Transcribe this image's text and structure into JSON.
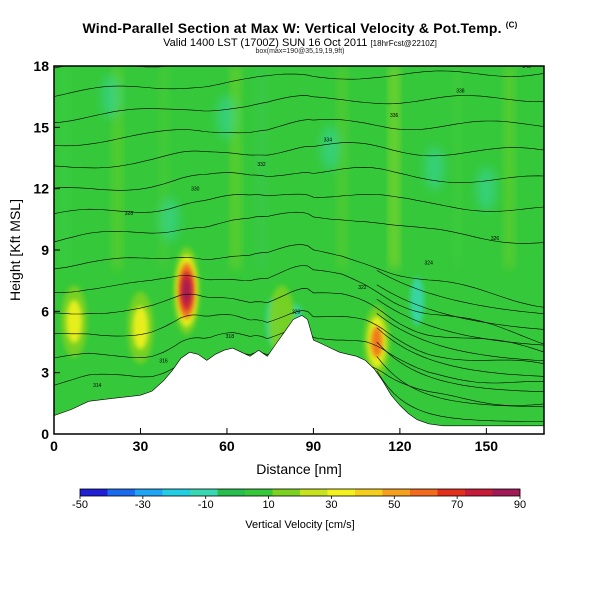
{
  "header": {
    "title": "Wind-Parallel Section at Max W: Vertical Velocity & Pot.Temp.",
    "title_mark": "(C)",
    "valid": "Valid 1400 LST (1700Z) SUN 16 Oct 2011",
    "valid_suffix": "[18hrFcst@2210Z]",
    "subline": "box(max=190@35,19,19,9ft)"
  },
  "chart_data": {
    "type": "heatmap",
    "xlabel": "Distance [nm]",
    "ylabel": "Height [Kft MSL]",
    "xlim": [
      0,
      170
    ],
    "ylim": [
      0,
      18
    ],
    "xticks": [
      0,
      30,
      60,
      90,
      120,
      150
    ],
    "yticks": [
      0,
      3,
      6,
      9,
      12,
      15,
      18
    ],
    "xtick_labels": [
      "0",
      "30",
      "60",
      "90",
      "120",
      "150"
    ],
    "ytick_labels": [
      "0",
      "3",
      "6",
      "9",
      "12",
      "15",
      "18"
    ],
    "colorbar": {
      "title": "Vertical Velocity [cm/s]",
      "range": [
        -50,
        90
      ],
      "tick_labels": [
        "-50",
        "-30",
        "-10",
        "10",
        "30",
        "50",
        "70",
        "90"
      ],
      "colors": [
        "#1f1fd6",
        "#1a6bef",
        "#1ea5f5",
        "#21cfe2",
        "#39d8b4",
        "#26bf4d",
        "#35c83a",
        "#7dd220",
        "#c7e31e",
        "#f3f21e",
        "#f5cf1c",
        "#f5a11d",
        "#f26a1c",
        "#e2301c",
        "#c71b3a",
        "#9f1a56"
      ]
    },
    "terrain_kft": [
      [
        0,
        0.9
      ],
      [
        6,
        1.2
      ],
      [
        12,
        1.6
      ],
      [
        18,
        1.7
      ],
      [
        24,
        1.8
      ],
      [
        30,
        1.9
      ],
      [
        34,
        2.1
      ],
      [
        38,
        2.6
      ],
      [
        41,
        3.1
      ],
      [
        44,
        3.7
      ],
      [
        47,
        4.0
      ],
      [
        50,
        3.9
      ],
      [
        53,
        3.6
      ],
      [
        56,
        3.9
      ],
      [
        59,
        4.1
      ],
      [
        62,
        4.2
      ],
      [
        65,
        4.0
      ],
      [
        68,
        3.8
      ],
      [
        71,
        4.1
      ],
      [
        74,
        3.8
      ],
      [
        77,
        4.4
      ],
      [
        80,
        5.0
      ],
      [
        83,
        5.6
      ],
      [
        86,
        5.8
      ],
      [
        88,
        5.6
      ],
      [
        90,
        4.6
      ],
      [
        93,
        4.4
      ],
      [
        96,
        4.2
      ],
      [
        99,
        4.0
      ],
      [
        102,
        3.9
      ],
      [
        105,
        3.8
      ],
      [
        108,
        3.6
      ],
      [
        111,
        3.2
      ],
      [
        114,
        2.6
      ],
      [
        117,
        1.9
      ],
      [
        120,
        1.4
      ],
      [
        123,
        1.0
      ],
      [
        126,
        0.7
      ],
      [
        130,
        0.5
      ],
      [
        135,
        0.4
      ],
      [
        140,
        0.4
      ],
      [
        150,
        0.4
      ],
      [
        160,
        0.4
      ],
      [
        170,
        0.4
      ]
    ],
    "updraft_cores": [
      {
        "x": 46,
        "y": 7.0,
        "value": 90
      },
      {
        "x": 7,
        "y": 5.5,
        "value": 30
      },
      {
        "x": 30,
        "y": 5.2,
        "value": 40
      },
      {
        "x": 112,
        "y": 4.5,
        "value": 50
      },
      {
        "x": 79,
        "y": 5.5,
        "value": 25
      }
    ],
    "downdraft_cores": [
      {
        "x": 76,
        "y": 5.5,
        "value": -10
      },
      {
        "x": 126,
        "y": 6.5,
        "value": -15
      },
      {
        "x": 84,
        "y": 5.2,
        "value": -10
      }
    ],
    "isentrope_labels": [
      "314",
      "316",
      "318",
      "320",
      "322",
      "324",
      "326",
      "328",
      "330",
      "332",
      "334",
      "336",
      "338",
      "340"
    ]
  }
}
